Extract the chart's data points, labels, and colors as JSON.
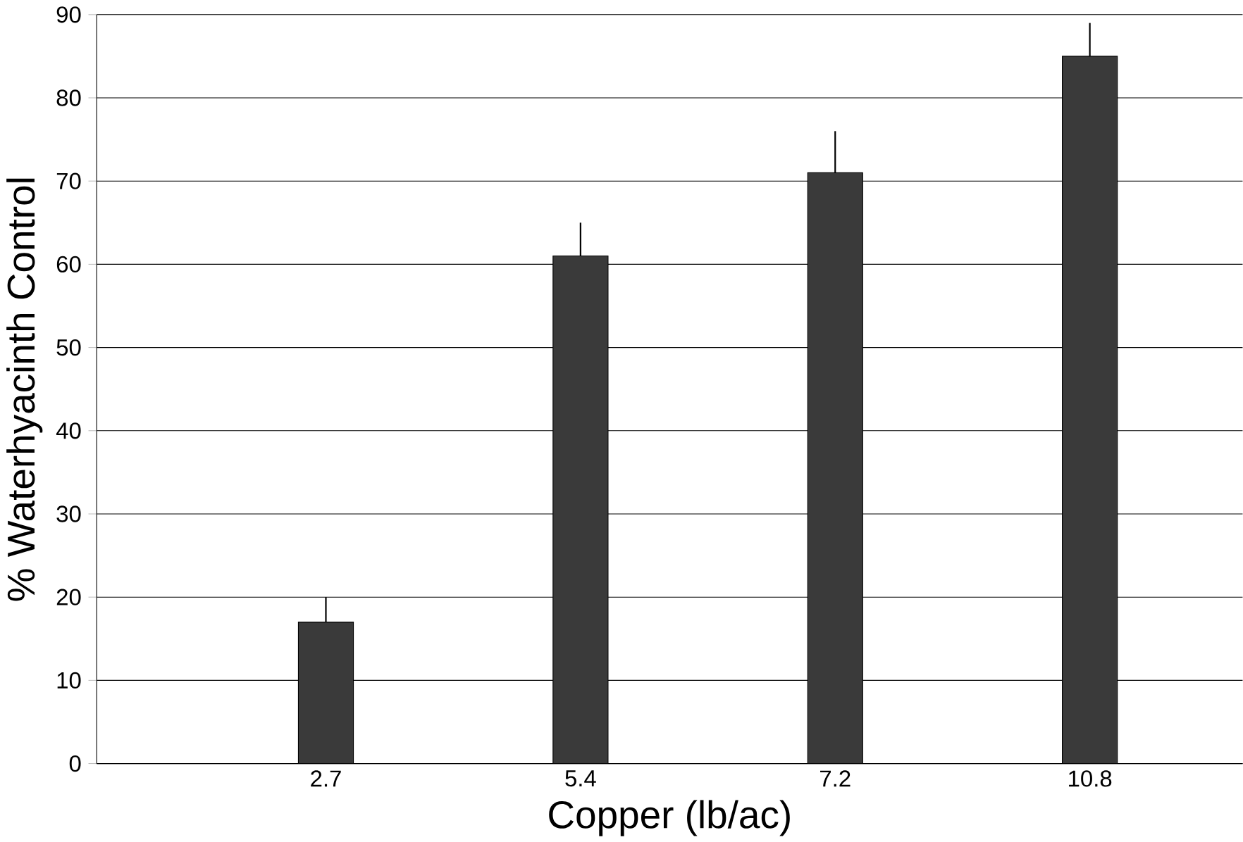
{
  "chart_data": {
    "type": "bar",
    "xlabel": "Copper (lb/ac)",
    "ylabel": "% Waterhyacinth Control",
    "categories": [
      "2.7",
      "5.4",
      "7.2",
      "10.8"
    ],
    "values": [
      17,
      61,
      71,
      85
    ],
    "errors": [
      [
        17,
        20
      ],
      [
        61,
        65
      ],
      [
        71,
        76
      ],
      [
        85,
        89
      ]
    ],
    "color": "#3a3a3a",
    "ylim": [
      0,
      90
    ],
    "yticks": [
      0,
      10,
      20,
      30,
      40,
      50,
      60,
      70,
      80,
      90
    ],
    "grid": "y"
  }
}
